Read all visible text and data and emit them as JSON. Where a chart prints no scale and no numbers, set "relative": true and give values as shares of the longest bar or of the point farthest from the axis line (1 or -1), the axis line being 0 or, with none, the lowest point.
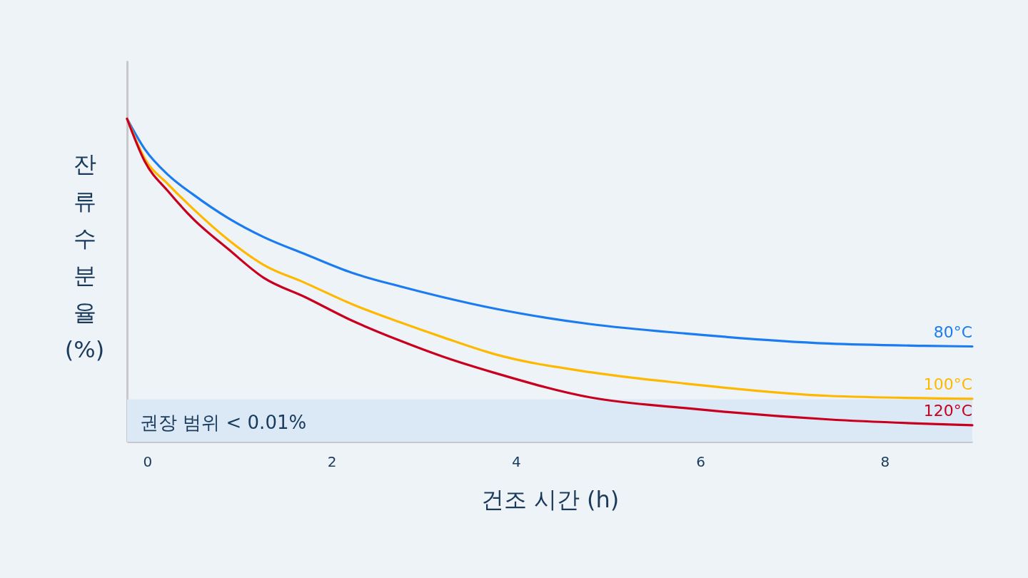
{
  "chart_data": {
    "type": "line",
    "xlabel": "건조 시간 (h)",
    "ylabel": "잔류 수분율 (%)",
    "relative": true,
    "xlim": [
      -0.22,
      8.95
    ],
    "xticks": [
      0,
      2,
      4,
      6,
      8
    ],
    "grid": false,
    "legend": false,
    "marker": "none",
    "line_style": "solid",
    "series": [
      {
        "name": "80°C",
        "color": "#1a7cf0",
        "x": [
          -0.22,
          -0.03,
          0.23,
          0.49,
          0.88,
          1.26,
          1.71,
          2.22,
          2.74,
          3.2,
          3.77,
          4.81,
          5.84,
          7.39,
          8.42,
          8.95
        ],
        "values": [
          1.0,
          0.907,
          0.825,
          0.767,
          0.692,
          0.634,
          0.581,
          0.523,
          0.481,
          0.448,
          0.412,
          0.364,
          0.335,
          0.304,
          0.297,
          0.295
        ]
      },
      {
        "name": "100°C",
        "color": "#ffb800",
        "x": [
          -0.22,
          -0.03,
          0.23,
          0.49,
          0.88,
          1.26,
          1.71,
          2.22,
          2.74,
          3.2,
          3.77,
          4.81,
          5.84,
          7.39,
          8.95
        ],
        "values": [
          1.0,
          0.878,
          0.796,
          0.723,
          0.625,
          0.548,
          0.492,
          0.426,
          0.37,
          0.324,
          0.271,
          0.215,
          0.18,
          0.142,
          0.133
        ]
      },
      {
        "name": "120°C",
        "color": "#c8001e",
        "x": [
          -0.22,
          -0.03,
          0.23,
          0.49,
          0.88,
          1.26,
          1.71,
          2.22,
          2.74,
          3.2,
          3.77,
          4.81,
          5.84,
          7.39,
          8.95
        ],
        "values": [
          1.0,
          0.869,
          0.774,
          0.692,
          0.596,
          0.508,
          0.448,
          0.375,
          0.313,
          0.264,
          0.213,
          0.137,
          0.104,
          0.069,
          0.051
        ]
      }
    ],
    "bands": [
      {
        "axis": "y",
        "from": 0,
        "to": 0.131,
        "label": "권장 범위 < 0.01%",
        "color": "#dbe9f7"
      }
    ]
  }
}
